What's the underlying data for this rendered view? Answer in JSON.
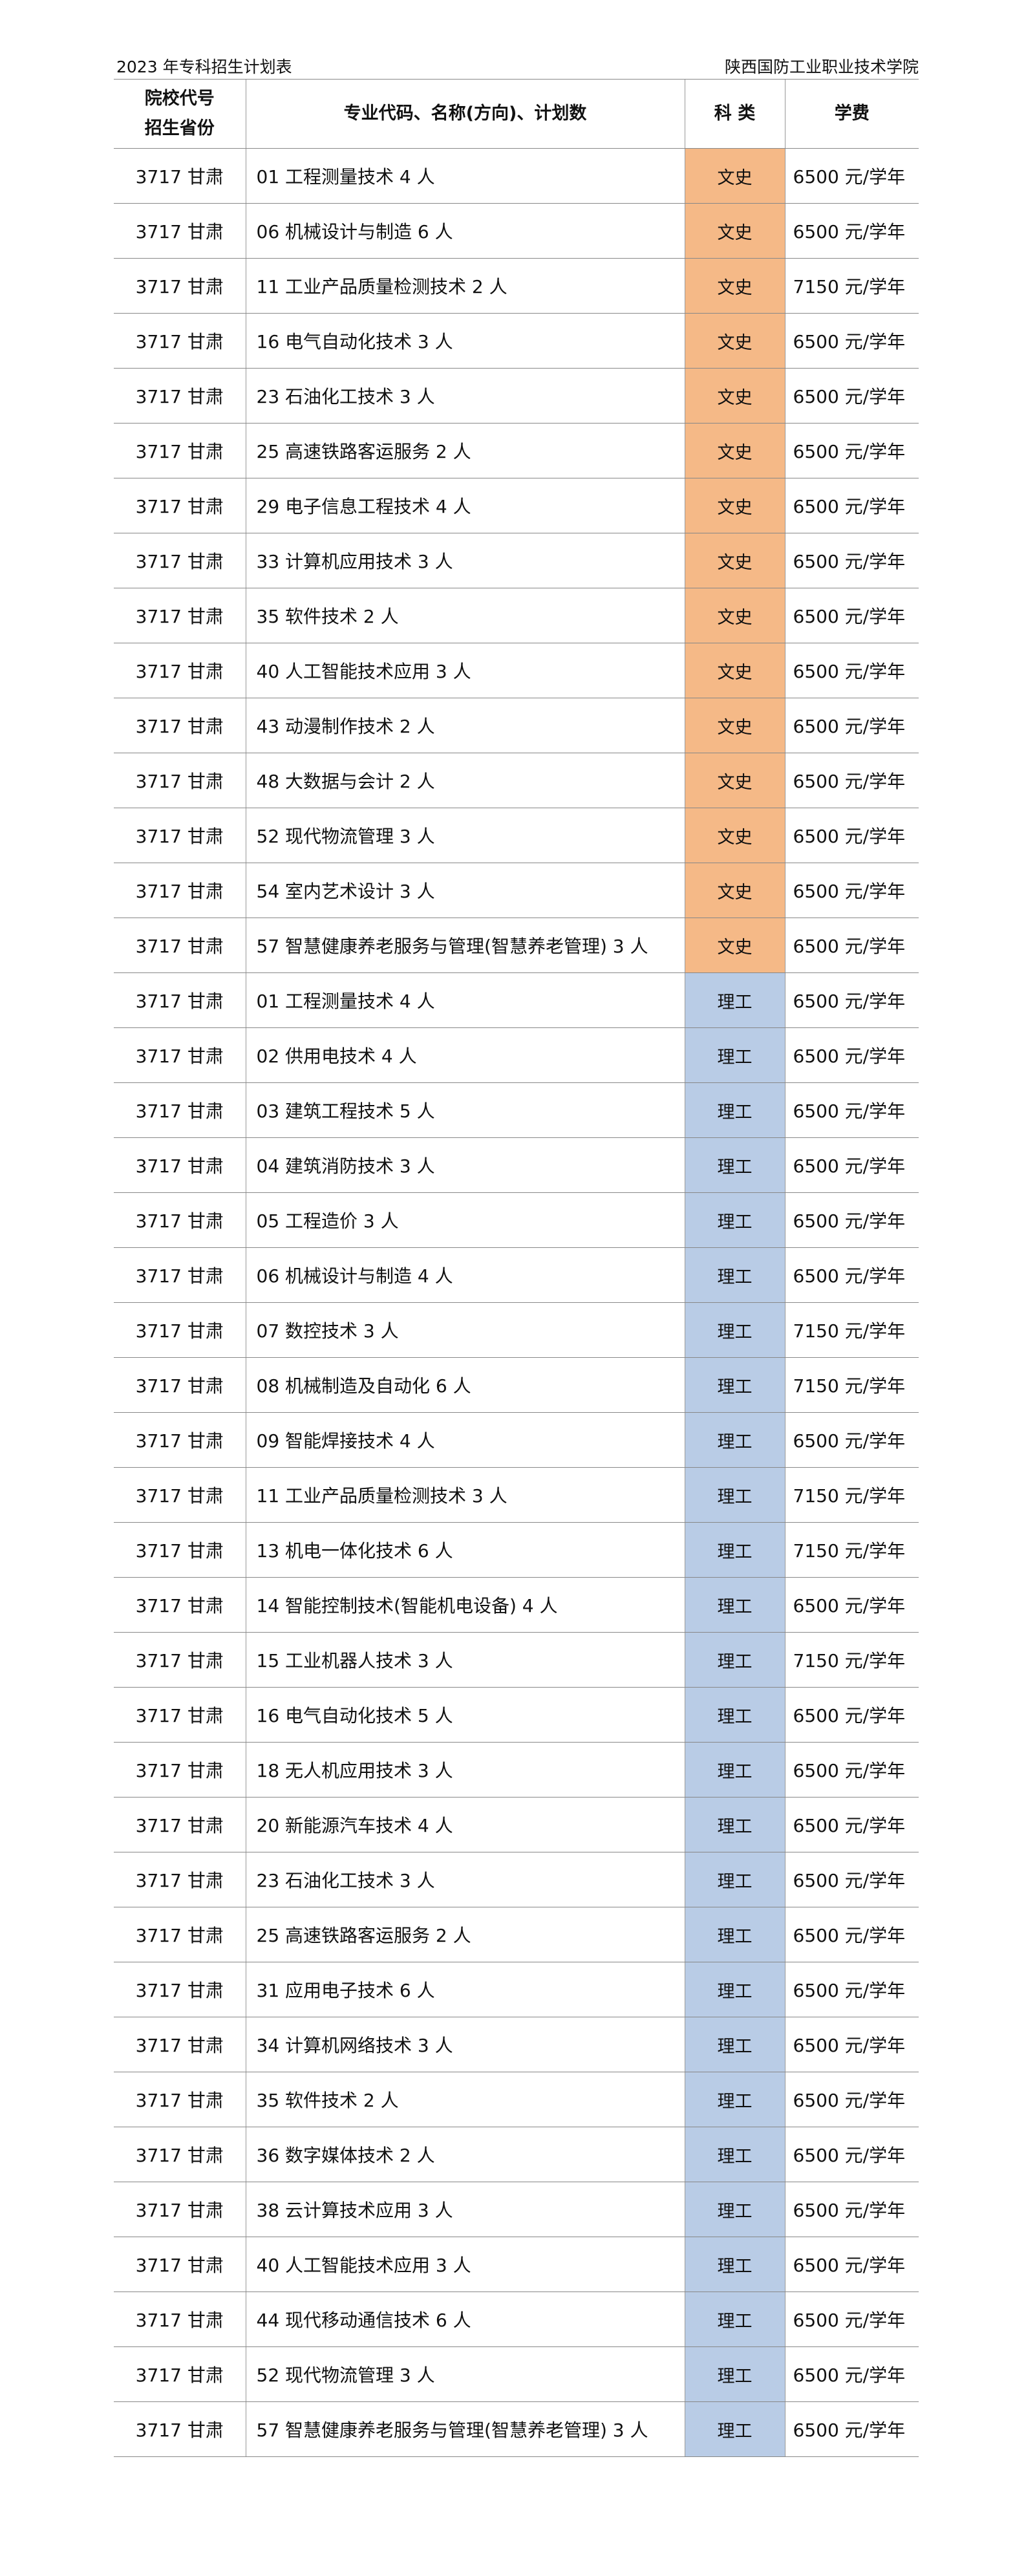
{
  "header": {
    "title": "2023 年专科招生计划表",
    "school": "陕西国防工业职业技术学院"
  },
  "table": {
    "columns": [
      [
        "院校代号",
        "招生省份"
      ],
      "专业代码、名称(方向)、计划数",
      "科 类",
      "学费"
    ],
    "category_colors": {
      "文史": "#f5b987",
      "理工": "#b9cce6"
    },
    "rows": [
      [
        "3717 甘肃",
        "01 工程测量技术 4 人",
        "文史",
        "6500 元/学年"
      ],
      [
        "3717 甘肃",
        "06 机械设计与制造 6 人",
        "文史",
        "6500 元/学年"
      ],
      [
        "3717 甘肃",
        "11 工业产品质量检测技术 2 人",
        "文史",
        "7150 元/学年"
      ],
      [
        "3717 甘肃",
        "16 电气自动化技术 3 人",
        "文史",
        "6500 元/学年"
      ],
      [
        "3717 甘肃",
        "23 石油化工技术 3 人",
        "文史",
        "6500 元/学年"
      ],
      [
        "3717 甘肃",
        "25 高速铁路客运服务 2 人",
        "文史",
        "6500 元/学年"
      ],
      [
        "3717 甘肃",
        "29 电子信息工程技术 4 人",
        "文史",
        "6500 元/学年"
      ],
      [
        "3717 甘肃",
        "33 计算机应用技术 3 人",
        "文史",
        "6500 元/学年"
      ],
      [
        "3717 甘肃",
        "35 软件技术 2 人",
        "文史",
        "6500 元/学年"
      ],
      [
        "3717 甘肃",
        "40 人工智能技术应用 3 人",
        "文史",
        "6500 元/学年"
      ],
      [
        "3717 甘肃",
        "43 动漫制作技术 2 人",
        "文史",
        "6500 元/学年"
      ],
      [
        "3717 甘肃",
        "48 大数据与会计 2 人",
        "文史",
        "6500 元/学年"
      ],
      [
        "3717 甘肃",
        "52 现代物流管理 3 人",
        "文史",
        "6500 元/学年"
      ],
      [
        "3717 甘肃",
        "54 室内艺术设计 3 人",
        "文史",
        "6500 元/学年"
      ],
      [
        "3717 甘肃",
        "57 智慧健康养老服务与管理(智慧养老管理) 3 人",
        "文史",
        "6500 元/学年"
      ],
      [
        "3717 甘肃",
        "01 工程测量技术 4 人",
        "理工",
        "6500 元/学年"
      ],
      [
        "3717 甘肃",
        "02 供用电技术 4 人",
        "理工",
        "6500 元/学年"
      ],
      [
        "3717 甘肃",
        "03 建筑工程技术 5 人",
        "理工",
        "6500 元/学年"
      ],
      [
        "3717 甘肃",
        "04 建筑消防技术 3 人",
        "理工",
        "6500 元/学年"
      ],
      [
        "3717 甘肃",
        "05 工程造价 3 人",
        "理工",
        "6500 元/学年"
      ],
      [
        "3717 甘肃",
        "06 机械设计与制造 4 人",
        "理工",
        "6500 元/学年"
      ],
      [
        "3717 甘肃",
        "07 数控技术 3 人",
        "理工",
        "7150 元/学年"
      ],
      [
        "3717 甘肃",
        "08 机械制造及自动化 6 人",
        "理工",
        "7150 元/学年"
      ],
      [
        "3717 甘肃",
        "09 智能焊接技术 4 人",
        "理工",
        "6500 元/学年"
      ],
      [
        "3717 甘肃",
        "11 工业产品质量检测技术 3 人",
        "理工",
        "7150 元/学年"
      ],
      [
        "3717 甘肃",
        "13 机电一体化技术 6 人",
        "理工",
        "7150 元/学年"
      ],
      [
        "3717 甘肃",
        "14 智能控制技术(智能机电设备) 4 人",
        "理工",
        "6500 元/学年"
      ],
      [
        "3717 甘肃",
        "15 工业机器人技术 3 人",
        "理工",
        "7150 元/学年"
      ],
      [
        "3717 甘肃",
        "16 电气自动化技术 5 人",
        "理工",
        "6500 元/学年"
      ],
      [
        "3717 甘肃",
        "18 无人机应用技术 3 人",
        "理工",
        "6500 元/学年"
      ],
      [
        "3717 甘肃",
        "20 新能源汽车技术 4 人",
        "理工",
        "6500 元/学年"
      ],
      [
        "3717 甘肃",
        "23 石油化工技术 3 人",
        "理工",
        "6500 元/学年"
      ],
      [
        "3717 甘肃",
        "25 高速铁路客运服务 2 人",
        "理工",
        "6500 元/学年"
      ],
      [
        "3717 甘肃",
        "31 应用电子技术 6 人",
        "理工",
        "6500 元/学年"
      ],
      [
        "3717 甘肃",
        "34 计算机网络技术 3 人",
        "理工",
        "6500 元/学年"
      ],
      [
        "3717 甘肃",
        "35 软件技术 2 人",
        "理工",
        "6500 元/学年"
      ],
      [
        "3717 甘肃",
        "36 数字媒体技术 2 人",
        "理工",
        "6500 元/学年"
      ],
      [
        "3717 甘肃",
        "38 云计算技术应用 3 人",
        "理工",
        "6500 元/学年"
      ],
      [
        "3717 甘肃",
        "40 人工智能技术应用 3 人",
        "理工",
        "6500 元/学年"
      ],
      [
        "3717 甘肃",
        "44 现代移动通信技术 6 人",
        "理工",
        "6500 元/学年"
      ],
      [
        "3717 甘肃",
        "52 现代物流管理 3 人",
        "理工",
        "6500 元/学年"
      ],
      [
        "3717 甘肃",
        "57 智慧健康养老服务与管理(智慧养老管理) 3 人",
        "理工",
        "6500 元/学年"
      ]
    ]
  }
}
